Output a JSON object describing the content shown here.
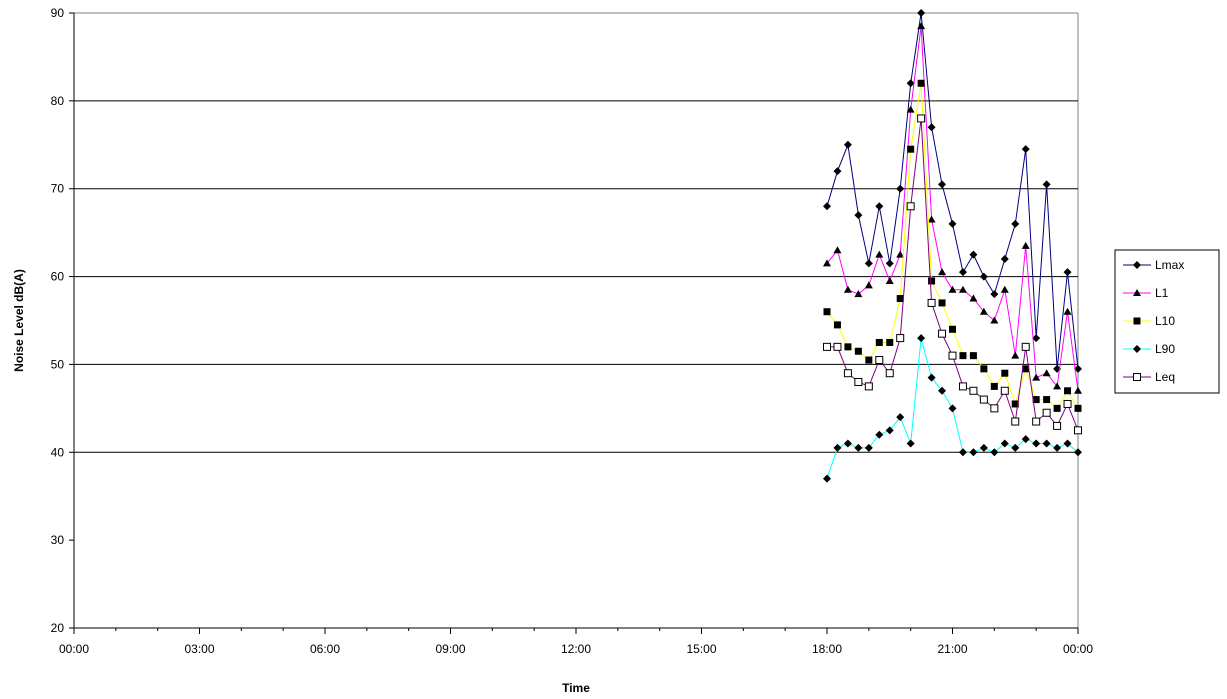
{
  "chart_data": {
    "type": "line",
    "xlabel": "Time",
    "ylabel": "Noise Level dB(A)",
    "ylim": [
      20,
      90
    ],
    "yticks": [
      "20",
      "30",
      "40",
      "50",
      "60",
      "70",
      "80",
      "90"
    ],
    "xlim_hours": [
      0,
      24
    ],
    "xtick_labels": [
      "00:00",
      "03:00",
      "06:00",
      "09:00",
      "12:00",
      "15:00",
      "18:00",
      "21:00",
      "00:00"
    ],
    "grid": "horizontal major lines at 40, 50, 60, 70, 80",
    "legend_position": "right",
    "x": [
      "18:00",
      "18:15",
      "18:30",
      "18:45",
      "19:00",
      "19:15",
      "19:30",
      "19:45",
      "20:00",
      "20:15",
      "20:30",
      "20:45",
      "21:00",
      "21:15",
      "21:30",
      "21:45",
      "22:00",
      "22:15",
      "22:30",
      "22:45",
      "23:00",
      "23:15",
      "23:30",
      "23:45",
      "00:00"
    ],
    "series": [
      {
        "name": "Lmax",
        "color": "#000080",
        "marker": "diamond",
        "values": [
          68,
          72,
          75,
          67,
          61.5,
          68,
          61.5,
          70,
          82,
          90,
          77,
          70.5,
          66,
          60.5,
          62.5,
          60,
          58,
          62,
          66,
          74.5,
          53,
          70.5,
          49.5,
          60.5,
          49.5
        ]
      },
      {
        "name": "L1",
        "color": "#ff00ff",
        "marker": "triangle",
        "values": [
          61.5,
          63,
          58.5,
          58,
          59,
          62.5,
          59.5,
          62.5,
          79,
          88.5,
          66.5,
          60.5,
          58.5,
          58.5,
          57.5,
          56,
          55,
          58.5,
          51,
          63.5,
          48.5,
          49,
          47.5,
          56,
          47
        ]
      },
      {
        "name": "L10",
        "color": "#ffff00",
        "marker": "square",
        "values": [
          56,
          54.5,
          52,
          51.5,
          50.5,
          52.5,
          52.5,
          57.5,
          74.5,
          82,
          59.5,
          57,
          54,
          51,
          51,
          49.5,
          47.5,
          49,
          45.5,
          49.5,
          46,
          46,
          45,
          47,
          45
        ]
      },
      {
        "name": "L90",
        "color": "#00ffff",
        "marker": "diamond",
        "values": [
          37,
          40.5,
          41,
          40.5,
          40.5,
          42,
          42.5,
          44,
          41,
          53,
          48.5,
          47,
          45,
          40,
          40,
          40.5,
          40,
          41,
          40.5,
          41.5,
          41,
          41,
          40.5,
          41,
          40
        ]
      },
      {
        "name": "Leq",
        "color": "#800080",
        "marker": "open-square",
        "values": [
          52,
          52,
          49,
          48,
          47.5,
          50.5,
          49,
          53,
          68,
          78,
          57,
          53.5,
          51,
          47.5,
          47,
          46,
          45,
          47,
          43.5,
          52,
          43.5,
          44.5,
          43,
          45.5,
          42.5
        ]
      }
    ]
  }
}
